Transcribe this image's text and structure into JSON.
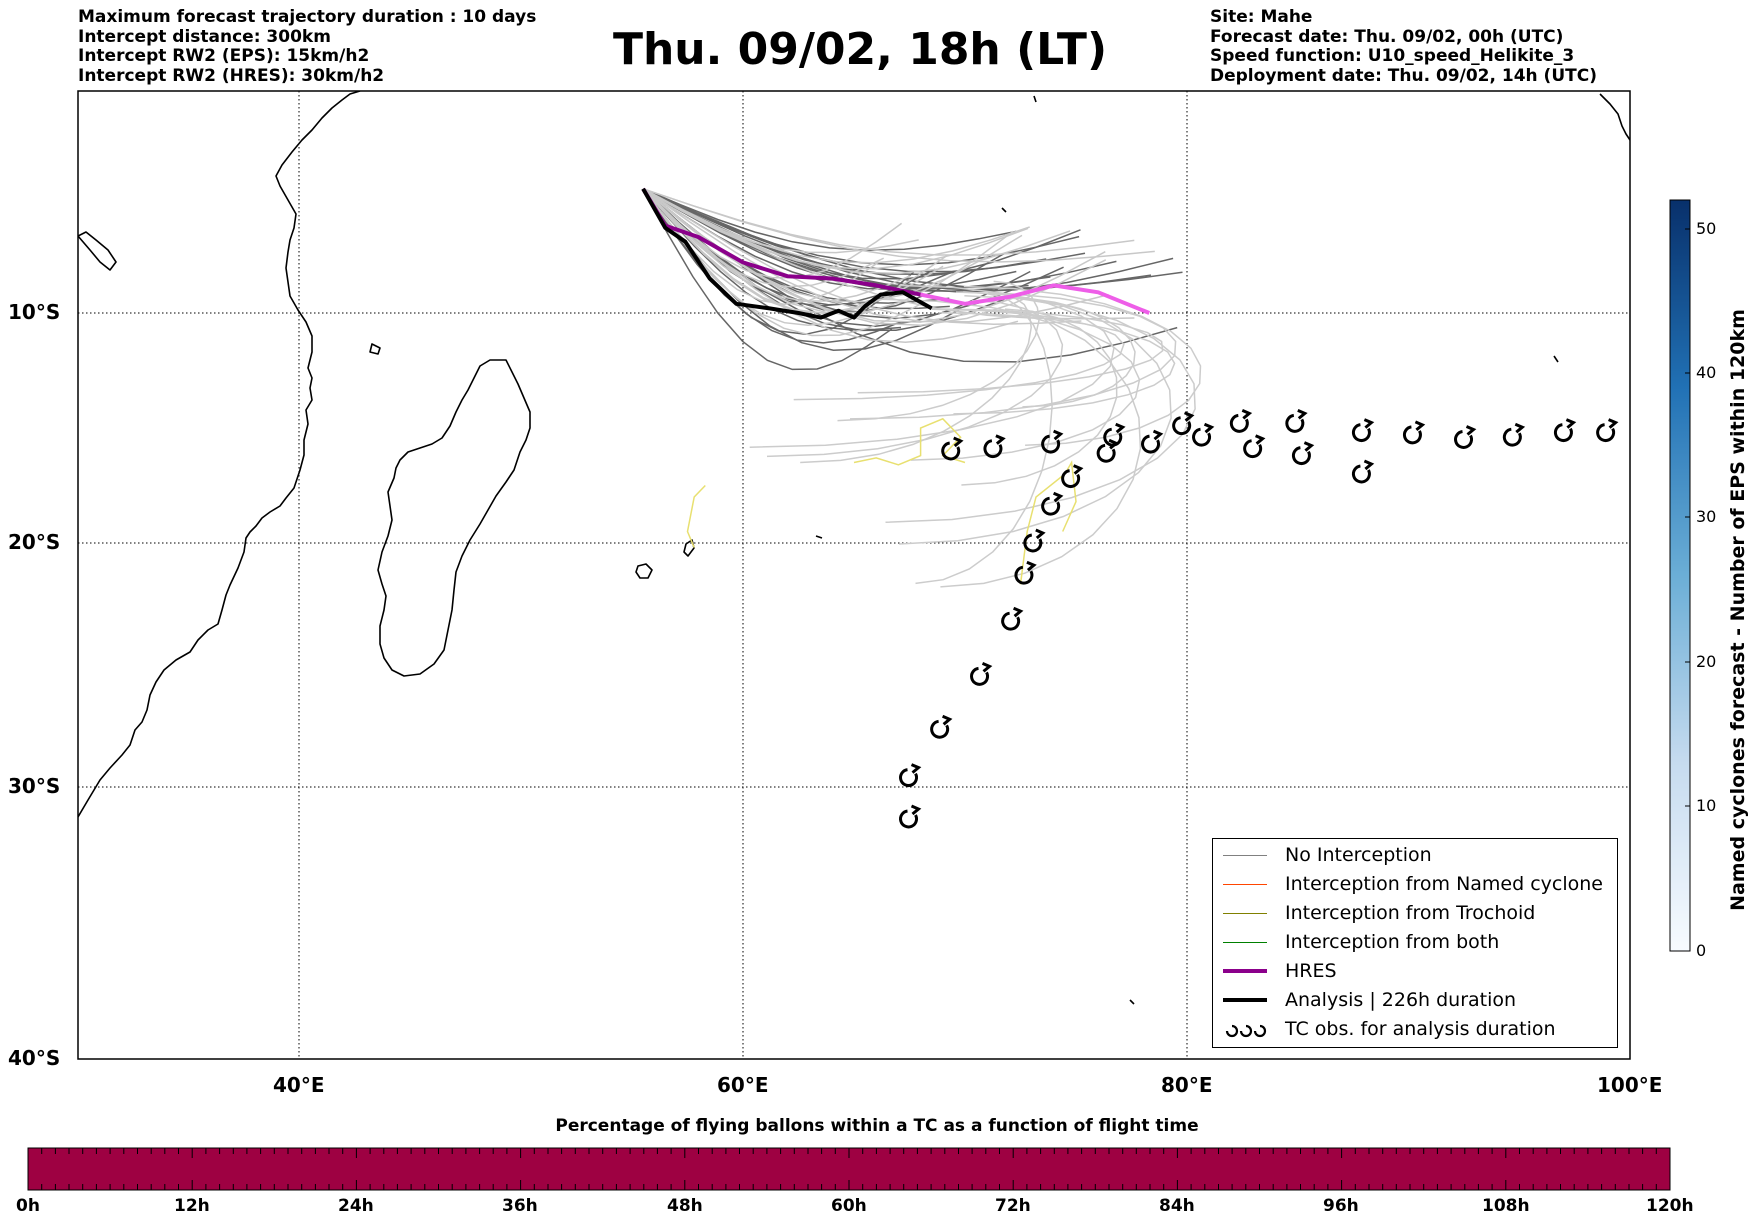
{
  "header_left": [
    "Maximum forecast trajectory duration : 10 days",
    "Intercept distance: 300km",
    "Intercept RW2 (EPS):  15km/h2",
    "Intercept RW2 (HRES): 30km/h2"
  ],
  "title": "Thu. 09/02, 18h (LT)",
  "header_right": [
    "Site: Mahe",
    "Forecast date: Thu. 09/02, 00h (UTC)",
    "Speed function: U10_speed_Helikite_3",
    "Deployment date: Thu. 09/02, 14h (UTC)"
  ],
  "map": {
    "lon_range": [
      30,
      100
    ],
    "lat_range": [
      -40,
      2
    ],
    "lon_ticks": [
      "40°E",
      "60°E",
      "80°E",
      "100°E"
    ],
    "lat_ticks": [
      "10°S",
      "20°S",
      "30°S",
      "40°S"
    ],
    "grid": true,
    "site": {
      "name": "Mahe",
      "lon": 55.5,
      "lat": -4.6
    }
  },
  "legend": {
    "items": [
      {
        "label": "No Interception",
        "color": "#808080",
        "style": "thin"
      },
      {
        "label": "Interception from Named cyclone",
        "color": "#ff4500",
        "style": "thin"
      },
      {
        "label": "Interception from Trochoid",
        "color": "#808000",
        "style": "thin"
      },
      {
        "label": "Interception from both",
        "color": "#008000",
        "style": "thin"
      },
      {
        "label": "HRES",
        "color": "#8b008b",
        "style": "thick"
      },
      {
        "label": "Analysis | 226h duration",
        "color": "#000000",
        "style": "thick"
      },
      {
        "label": "TC obs. for analysis duration",
        "color": "#000000",
        "style": "tc-symbol"
      }
    ],
    "placement": "lower-right"
  },
  "colorbar": {
    "title": "Named cyclones forecast - Number of EPS within 120km",
    "range": [
      0,
      52
    ],
    "ticks": [
      "0",
      "10",
      "20",
      "30",
      "40",
      "50"
    ],
    "colormap": [
      "#f7fbff",
      "#08306b"
    ]
  },
  "bottom_bar": {
    "title": "Percentage of flying ballons within a TC as a function of flight time",
    "ticks": [
      "0h",
      "12h",
      "24h",
      "36h",
      "48h",
      "60h",
      "72h",
      "84h",
      "96h",
      "108h",
      "120h"
    ],
    "fill_color": "#9e0142"
  },
  "hres_track": [
    [
      55.5,
      -4.6
    ],
    [
      56.5,
      -6.2
    ],
    [
      58,
      -6.7
    ],
    [
      60,
      -7.8
    ],
    [
      62,
      -8.4
    ],
    [
      64,
      -8.5
    ],
    [
      66,
      -8.8
    ],
    [
      68,
      -9.2
    ],
    [
      70,
      -9.6
    ],
    [
      72,
      -9.3
    ],
    [
      74,
      -8.8
    ],
    [
      76,
      -9.1
    ],
    [
      78.3,
      -10.0
    ]
  ],
  "analysis_track": [
    [
      55.5,
      -4.6
    ],
    [
      56.5,
      -6.3
    ],
    [
      57.4,
      -6.9
    ],
    [
      58.5,
      -8.5
    ],
    [
      59.7,
      -9.6
    ],
    [
      61.2,
      -9.8
    ],
    [
      62.5,
      -10.0
    ],
    [
      63.5,
      -10.2
    ],
    [
      64.3,
      -9.9
    ],
    [
      65,
      -10.2
    ],
    [
      65.5,
      -9.7
    ],
    [
      66.2,
      -9.2
    ],
    [
      67.2,
      -9.1
    ],
    [
      68.5,
      -9.8
    ]
  ],
  "tc_obs": [
    [
      67.5,
      -32.0
    ],
    [
      67.5,
      -30.2
    ],
    [
      68.9,
      -28.1
    ],
    [
      70.7,
      -25.8
    ],
    [
      72.1,
      -23.4
    ],
    [
      72.7,
      -21.4
    ],
    [
      73.1,
      -20.0
    ],
    [
      73.9,
      -18.4
    ],
    [
      74.8,
      -17.2
    ],
    [
      76.4,
      -16.1
    ],
    [
      76.7,
      -15.4
    ],
    [
      78.4,
      -15.7
    ],
    [
      79.8,
      -14.9
    ],
    [
      80.7,
      -15.4
    ],
    [
      82.4,
      -14.8
    ],
    [
      84.9,
      -14.8
    ],
    [
      87.9,
      -15.2
    ],
    [
      90.2,
      -15.3
    ],
    [
      92.5,
      -15.5
    ],
    [
      94.7,
      -15.4
    ],
    [
      97.0,
      -15.2
    ],
    [
      98.9,
      -15.2
    ],
    [
      69.4,
      -16.0
    ],
    [
      71.3,
      -15.9
    ],
    [
      73.9,
      -15.7
    ],
    [
      83.0,
      -15.9
    ],
    [
      85.2,
      -16.2
    ],
    [
      87.9,
      -17.0
    ]
  ]
}
